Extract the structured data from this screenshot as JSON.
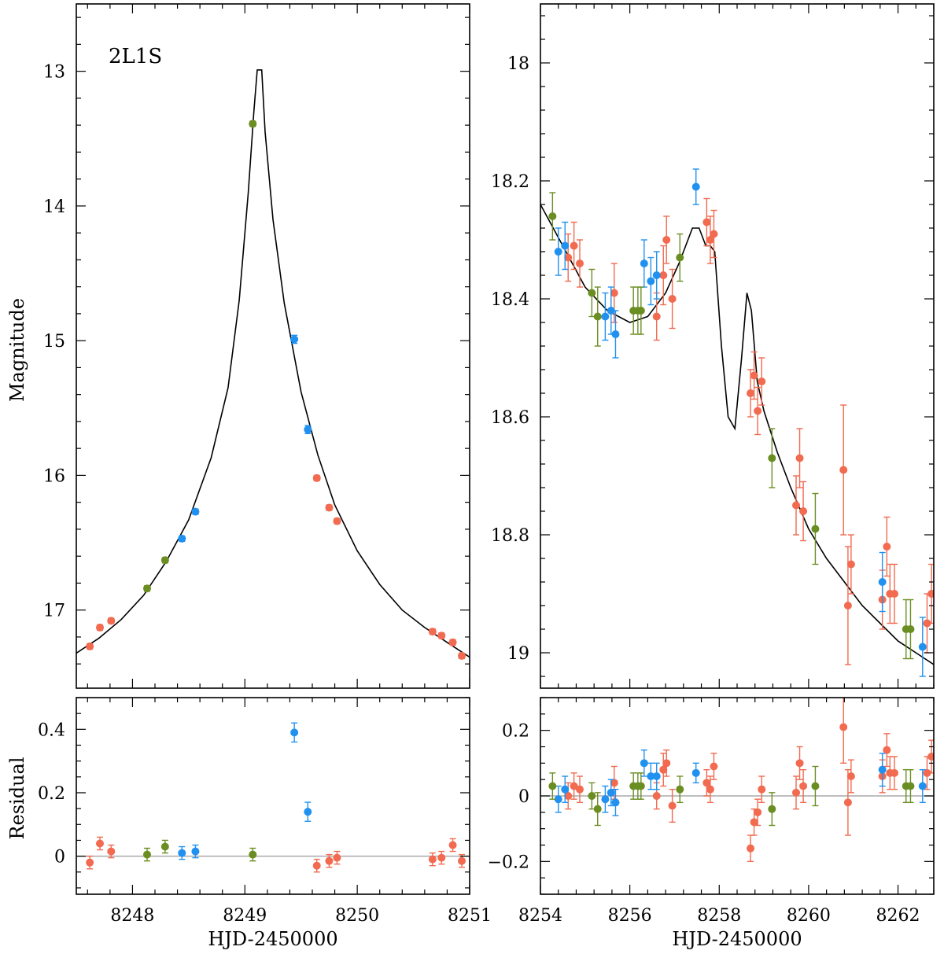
{
  "colors": {
    "red": "#f26a4f",
    "blue": "#2191f0",
    "green": "#6b8e23",
    "model": "#000000",
    "zero_line": "#aaaaaa"
  },
  "chart_data": [
    {
      "type": "scatter",
      "panel": "top-left",
      "annotation": "2L1S",
      "ylabel": "Magnitude",
      "xlim": [
        8247.5,
        8251.0
      ],
      "ylim": [
        17.58,
        12.5
      ],
      "y_inverted": true,
      "xticks": [
        8248,
        8249,
        8250,
        8251
      ],
      "yticks": [
        13,
        14,
        15,
        16,
        17
      ],
      "ytick_labels": [
        "13",
        "14",
        "15",
        "16",
        "17"
      ],
      "series": [
        {
          "color": "red",
          "points": [
            [
              8247.62,
              17.27,
              0.02
            ],
            [
              8247.71,
              17.13,
              0.02
            ],
            [
              8247.81,
              17.08,
              0.02
            ],
            [
              8249.64,
              16.02,
              0.02
            ],
            [
              8249.75,
              16.24,
              0.02
            ],
            [
              8249.82,
              16.34,
              0.02
            ],
            [
              8250.67,
              17.16,
              0.02
            ],
            [
              8250.75,
              17.19,
              0.02
            ],
            [
              8250.85,
              17.24,
              0.02
            ],
            [
              8250.93,
              17.34,
              0.02
            ]
          ]
        },
        {
          "color": "blue",
          "points": [
            [
              8248.44,
              16.47,
              0.02
            ],
            [
              8248.56,
              16.27,
              0.02
            ],
            [
              8249.44,
              14.99,
              0.03
            ],
            [
              8249.56,
              15.66,
              0.03
            ]
          ]
        },
        {
          "color": "green",
          "points": [
            [
              8248.13,
              16.84,
              0.02
            ],
            [
              8248.29,
              16.63,
              0.02
            ],
            [
              8249.07,
              13.39,
              0.02
            ]
          ]
        }
      ],
      "model": [
        [
          8247.5,
          17.32
        ],
        [
          8247.7,
          17.21
        ],
        [
          8247.9,
          17.07
        ],
        [
          8248.1,
          16.89
        ],
        [
          8248.3,
          16.64
        ],
        [
          8248.5,
          16.33
        ],
        [
          8248.7,
          15.87
        ],
        [
          8248.85,
          15.35
        ],
        [
          8248.95,
          14.7
        ],
        [
          8249.03,
          13.9
        ],
        [
          8249.08,
          13.3
        ],
        [
          8249.11,
          12.99
        ],
        [
          8249.15,
          12.99
        ],
        [
          8249.18,
          13.45
        ],
        [
          8249.25,
          14.1
        ],
        [
          8249.35,
          14.72
        ],
        [
          8249.5,
          15.38
        ],
        [
          8249.65,
          15.85
        ],
        [
          8249.8,
          16.22
        ],
        [
          8250.0,
          16.56
        ],
        [
          8250.2,
          16.81
        ],
        [
          8250.4,
          17.0
        ],
        [
          8250.6,
          17.13
        ],
        [
          8250.8,
          17.24
        ],
        [
          8251.0,
          17.35
        ]
      ]
    },
    {
      "type": "scatter",
      "panel": "top-right",
      "xlim": [
        8254.0,
        8262.8
      ],
      "ylim": [
        19.06,
        17.9
      ],
      "y_inverted": true,
      "xticks": [
        8254,
        8256,
        8258,
        8260,
        8262
      ],
      "yticks": [
        18.0,
        18.2,
        18.4,
        18.6,
        18.8,
        19.0
      ],
      "ytick_labels": [
        "18",
        "18.2",
        "18.4",
        "18.6",
        "18.8",
        "19"
      ],
      "series": [
        {
          "color": "red",
          "points": [
            [
              8254.62,
              18.33,
              0.04
            ],
            [
              8254.75,
              18.31,
              0.04
            ],
            [
              8254.88,
              18.34,
              0.04
            ],
            [
              8255.65,
              18.39,
              0.05
            ],
            [
              8256.6,
              18.43,
              0.04
            ],
            [
              8256.75,
              18.36,
              0.05
            ],
            [
              8256.82,
              18.3,
              0.04
            ],
            [
              8256.95,
              18.4,
              0.05
            ],
            [
              8257.72,
              18.27,
              0.04
            ],
            [
              8257.8,
              18.3,
              0.04
            ],
            [
              8257.88,
              18.29,
              0.04
            ],
            [
              8258.7,
              18.56,
              0.04
            ],
            [
              8258.78,
              18.53,
              0.04
            ],
            [
              8258.86,
              18.59,
              0.04
            ],
            [
              8258.95,
              18.54,
              0.04
            ],
            [
              8259.72,
              18.75,
              0.05
            ],
            [
              8259.8,
              18.67,
              0.05
            ],
            [
              8259.88,
              18.76,
              0.05
            ],
            [
              8260.78,
              18.69,
              0.11
            ],
            [
              8260.88,
              18.92,
              0.1
            ],
            [
              8260.95,
              18.85,
              0.05
            ],
            [
              8261.65,
              18.91,
              0.05
            ],
            [
              8261.75,
              18.82,
              0.05
            ],
            [
              8261.82,
              18.9,
              0.05
            ],
            [
              8261.92,
              18.9,
              0.05
            ],
            [
              8262.65,
              18.95,
              0.05
            ],
            [
              8262.75,
              18.9,
              0.05
            ]
          ]
        },
        {
          "color": "blue",
          "points": [
            [
              8254.4,
              18.32,
              0.04
            ],
            [
              8254.55,
              18.31,
              0.04
            ],
            [
              8255.45,
              18.43,
              0.04
            ],
            [
              8255.58,
              18.42,
              0.04
            ],
            [
              8255.68,
              18.46,
              0.04
            ],
            [
              8256.32,
              18.34,
              0.04
            ],
            [
              8256.47,
              18.37,
              0.04
            ],
            [
              8256.6,
              18.36,
              0.04
            ],
            [
              8257.48,
              18.21,
              0.03
            ],
            [
              8261.65,
              18.88,
              0.05
            ],
            [
              8262.55,
              18.99,
              0.05
            ]
          ]
        },
        {
          "color": "green",
          "points": [
            [
              8254.27,
              18.26,
              0.04
            ],
            [
              8255.15,
              18.39,
              0.04
            ],
            [
              8255.28,
              18.43,
              0.05
            ],
            [
              8256.08,
              18.42,
              0.04
            ],
            [
              8256.18,
              18.42,
              0.04
            ],
            [
              8256.25,
              18.42,
              0.04
            ],
            [
              8257.12,
              18.33,
              0.04
            ],
            [
              8259.18,
              18.67,
              0.05
            ],
            [
              8260.15,
              18.79,
              0.06
            ],
            [
              8262.18,
              18.96,
              0.05
            ],
            [
              8262.28,
              18.96,
              0.05
            ]
          ]
        }
      ],
      "model": [
        [
          8254.0,
          18.24
        ],
        [
          8254.5,
          18.31
        ],
        [
          8255.0,
          18.38
        ],
        [
          8255.5,
          18.42
        ],
        [
          8256.0,
          18.44
        ],
        [
          8256.4,
          18.43
        ],
        [
          8256.8,
          18.39
        ],
        [
          8257.1,
          18.34
        ],
        [
          8257.4,
          18.28
        ],
        [
          8257.55,
          18.28
        ],
        [
          8257.7,
          18.31
        ],
        [
          8257.8,
          18.31
        ],
        [
          8257.9,
          18.32
        ],
        [
          8258.05,
          18.48
        ],
        [
          8258.2,
          18.6
        ],
        [
          8258.35,
          18.62
        ],
        [
          8258.5,
          18.5
        ],
        [
          8258.62,
          18.39
        ],
        [
          8258.72,
          18.42
        ],
        [
          8258.85,
          18.54
        ],
        [
          8259.0,
          18.59
        ],
        [
          8259.3,
          18.66
        ],
        [
          8259.6,
          18.72
        ],
        [
          8260.0,
          18.79
        ],
        [
          8260.4,
          18.84
        ],
        [
          8260.8,
          18.88
        ],
        [
          8261.2,
          18.92
        ],
        [
          8261.6,
          18.95
        ],
        [
          8262.0,
          18.98
        ],
        [
          8262.4,
          19.0
        ],
        [
          8262.8,
          19.02
        ]
      ]
    },
    {
      "type": "scatter",
      "panel": "bottom-left",
      "xlabel": "HJD-2450000",
      "ylabel": "Residual",
      "xlim": [
        8247.5,
        8251.0
      ],
      "ylim": [
        -0.12,
        0.5
      ],
      "xticks": [
        8248,
        8249,
        8250,
        8251
      ],
      "xtick_labels": [
        "8248",
        "8249",
        "8250",
        "8251"
      ],
      "yticks": [
        0,
        0.2,
        0.4
      ],
      "ytick_labels": [
        "0",
        "0.2",
        "0.4"
      ],
      "zero_line": 0,
      "series": [
        {
          "color": "red",
          "points": [
            [
              8247.62,
              -0.02,
              0.02
            ],
            [
              8247.71,
              0.04,
              0.02
            ],
            [
              8247.81,
              0.015,
              0.02
            ],
            [
              8249.64,
              -0.03,
              0.02
            ],
            [
              8249.75,
              -0.015,
              0.02
            ],
            [
              8249.82,
              -0.005,
              0.02
            ],
            [
              8250.67,
              -0.01,
              0.02
            ],
            [
              8250.75,
              -0.005,
              0.02
            ],
            [
              8250.85,
              0.035,
              0.02
            ],
            [
              8250.93,
              -0.015,
              0.02
            ]
          ]
        },
        {
          "color": "blue",
          "points": [
            [
              8248.44,
              0.01,
              0.02
            ],
            [
              8248.56,
              0.015,
              0.02
            ],
            [
              8249.44,
              0.39,
              0.03
            ],
            [
              8249.56,
              0.14,
              0.03
            ]
          ]
        },
        {
          "color": "green",
          "points": [
            [
              8248.13,
              0.005,
              0.02
            ],
            [
              8248.29,
              0.03,
              0.02
            ],
            [
              8249.07,
              0.005,
              0.02
            ]
          ]
        }
      ]
    },
    {
      "type": "scatter",
      "panel": "bottom-right",
      "xlabel": "HJD-2450000",
      "xlim": [
        8254.0,
        8262.8
      ],
      "ylim": [
        -0.3,
        0.3
      ],
      "xticks": [
        8254,
        8256,
        8258,
        8260,
        8262
      ],
      "xtick_labels": [
        "8254",
        "8256",
        "8258",
        "8260",
        "8262"
      ],
      "yticks": [
        -0.2,
        0,
        0.2
      ],
      "ytick_labels": [
        "−0.2",
        "0",
        "0.2"
      ],
      "zero_line": 0,
      "series": [
        {
          "color": "red",
          "points": [
            [
              8254.62,
              0.0,
              0.04
            ],
            [
              8254.75,
              0.03,
              0.04
            ],
            [
              8254.88,
              0.02,
              0.04
            ],
            [
              8255.65,
              0.04,
              0.05
            ],
            [
              8256.6,
              0.0,
              0.04
            ],
            [
              8256.75,
              0.08,
              0.05
            ],
            [
              8256.82,
              0.1,
              0.04
            ],
            [
              8256.95,
              -0.03,
              0.05
            ],
            [
              8257.72,
              0.04,
              0.04
            ],
            [
              8257.8,
              0.02,
              0.04
            ],
            [
              8257.88,
              0.09,
              0.04
            ],
            [
              8258.7,
              -0.16,
              0.04
            ],
            [
              8258.78,
              -0.08,
              0.04
            ],
            [
              8258.86,
              -0.05,
              0.04
            ],
            [
              8258.95,
              0.02,
              0.04
            ],
            [
              8259.72,
              0.01,
              0.05
            ],
            [
              8259.8,
              0.1,
              0.05
            ],
            [
              8259.88,
              0.03,
              0.05
            ],
            [
              8260.78,
              0.21,
              0.11
            ],
            [
              8260.88,
              -0.02,
              0.1
            ],
            [
              8260.95,
              0.06,
              0.05
            ],
            [
              8261.65,
              0.06,
              0.05
            ],
            [
              8261.75,
              0.14,
              0.05
            ],
            [
              8261.82,
              0.07,
              0.05
            ],
            [
              8261.92,
              0.07,
              0.05
            ],
            [
              8262.65,
              0.07,
              0.05
            ],
            [
              8262.75,
              0.12,
              0.05
            ]
          ]
        },
        {
          "color": "blue",
          "points": [
            [
              8254.4,
              -0.01,
              0.04
            ],
            [
              8254.55,
              0.02,
              0.04
            ],
            [
              8255.45,
              -0.01,
              0.04
            ],
            [
              8255.58,
              0.01,
              0.04
            ],
            [
              8255.68,
              -0.02,
              0.04
            ],
            [
              8256.32,
              0.1,
              0.04
            ],
            [
              8256.47,
              0.06,
              0.04
            ],
            [
              8256.6,
              0.06,
              0.04
            ],
            [
              8257.48,
              0.07,
              0.03
            ],
            [
              8261.65,
              0.08,
              0.05
            ],
            [
              8262.55,
              0.03,
              0.05
            ]
          ]
        },
        {
          "color": "green",
          "points": [
            [
              8254.27,
              0.03,
              0.04
            ],
            [
              8255.15,
              0.0,
              0.04
            ],
            [
              8255.28,
              -0.04,
              0.05
            ],
            [
              8256.08,
              0.03,
              0.04
            ],
            [
              8256.18,
              0.03,
              0.04
            ],
            [
              8256.25,
              0.03,
              0.04
            ],
            [
              8257.12,
              0.02,
              0.04
            ],
            [
              8259.18,
              -0.04,
              0.05
            ],
            [
              8260.15,
              0.03,
              0.06
            ],
            [
              8262.18,
              0.03,
              0.05
            ],
            [
              8262.28,
              0.03,
              0.05
            ]
          ]
        }
      ]
    }
  ]
}
